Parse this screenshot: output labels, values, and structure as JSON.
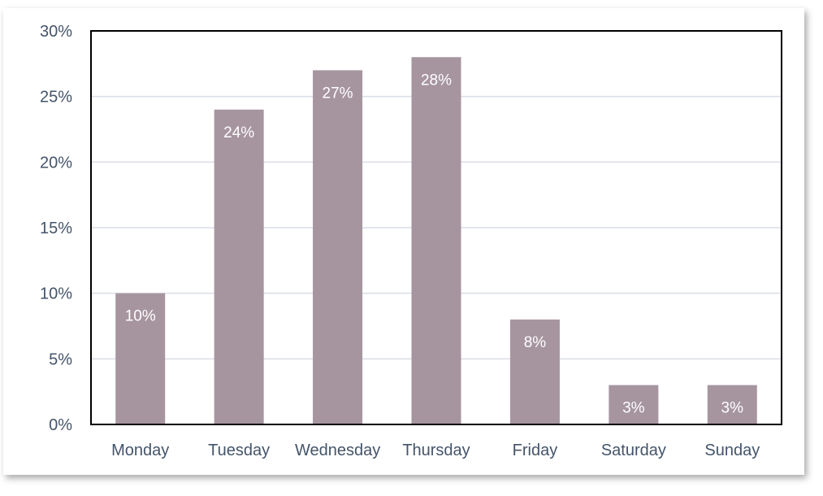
{
  "chart_data": {
    "type": "bar",
    "categories": [
      "Monday",
      "Tuesday",
      "Wednesday",
      "Thursday",
      "Friday",
      "Saturday",
      "Sunday"
    ],
    "values": [
      10,
      24,
      27,
      28,
      8,
      3,
      3
    ],
    "value_labels": [
      "10%",
      "24%",
      "27%",
      "28%",
      "8%",
      "3%",
      "3%"
    ],
    "y_ticks": [
      "0%",
      "5%",
      "10%",
      "15%",
      "20%",
      "25%",
      "30%"
    ],
    "y_tick_values": [
      0,
      5,
      10,
      15,
      20,
      25,
      30
    ],
    "ylim": [
      0,
      30
    ],
    "title": "",
    "xlabel": "",
    "ylabel": "",
    "grid": true,
    "legend": "none",
    "colors": {
      "bar": "#a6959f",
      "grid": "#d9dde6",
      "axis_text": "#44546a",
      "frame": "#000000"
    }
  }
}
